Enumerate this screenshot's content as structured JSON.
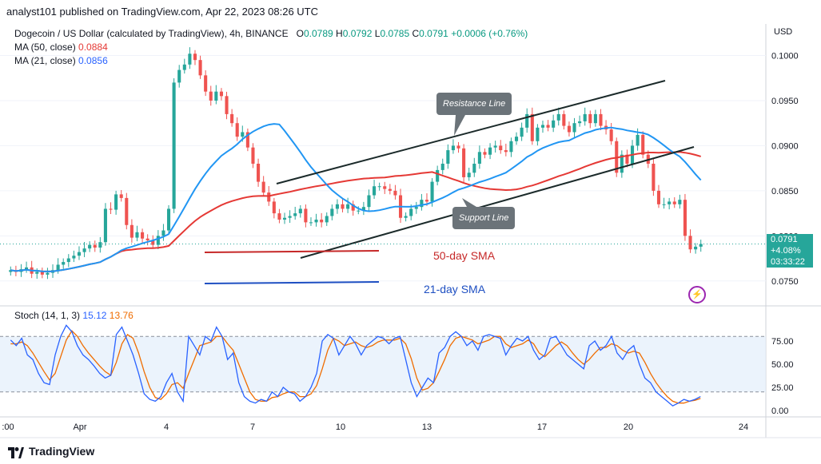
{
  "header": {
    "published": "analyst101 published on TradingView.com, Apr 22, 2023 08:26 UTC"
  },
  "legend": {
    "symbol": "Dogecoin / US Dollar (calculated by TradingView), 4h, BINANCE",
    "open_label": "O",
    "open": "0.0789",
    "high_label": "H",
    "high": "0.0792",
    "low_label": "L",
    "low": "0.0785",
    "close_label": "C",
    "close": "0.0791",
    "change": "+0.0006 (+0.76%)",
    "ma50_label": "MA (50, close)",
    "ma50_value": "0.0884",
    "ma21_label": "MA (21, close)",
    "ma21_value": "0.0856"
  },
  "stoch_legend": {
    "label": "Stoch (14, 1, 3)",
    "k_value": "15.12",
    "d_value": "13.76"
  },
  "price_axis": {
    "currency": "USD",
    "current_price": "0.0791",
    "current_change": "+4.08%",
    "countdown": "03:33:22"
  },
  "annotations": {
    "resistance": "Resistance Line",
    "support": "Support Line",
    "sma50": "50-day SMA",
    "sma21": "21-day SMA"
  },
  "footer": {
    "brand": "TradingView"
  },
  "colors": {
    "up": "#26a69a",
    "down": "#ef5350",
    "ma50": "#e53935",
    "ma21": "#2196f3",
    "stoch_k": "#2962ff",
    "stoch_d": "#ef6c00",
    "channel": "#1b2a2a"
  },
  "chart_data": [
    {
      "type": "candlestick",
      "title": "Dogecoin / US Dollar (calculated by TradingView), 4h, BINANCE",
      "ylim": [
        0.0725,
        0.1035
      ],
      "y_ticks": [
        "0.1000",
        "0.0950",
        "0.0900",
        "0.0850",
        "0.0800",
        "0.0750"
      ],
      "x_ticks": [
        ":00",
        "Apr",
        "4",
        "7",
        "10",
        "13",
        "17",
        "20",
        "24"
      ],
      "series": [
        {
          "name": "MA (50, close)",
          "last": 0.0884
        },
        {
          "name": "MA (21, close)",
          "last": 0.0856
        }
      ],
      "close_series": [
        0.0762,
        0.076,
        0.0763,
        0.0765,
        0.0758,
        0.076,
        0.0757,
        0.0759,
        0.0762,
        0.0768,
        0.0771,
        0.0775,
        0.0778,
        0.0782,
        0.0786,
        0.079,
        0.0787,
        0.0793,
        0.083,
        0.0829,
        0.0846,
        0.0842,
        0.0812,
        0.0798,
        0.0804,
        0.0797,
        0.0795,
        0.079,
        0.08,
        0.0806,
        0.083,
        0.097,
        0.0984,
        0.099,
        0.1002,
        0.0995,
        0.0978,
        0.096,
        0.095,
        0.096,
        0.0955,
        0.0935,
        0.0925,
        0.091,
        0.0915,
        0.0898,
        0.088,
        0.086,
        0.0848,
        0.0838,
        0.0825,
        0.0818,
        0.082,
        0.0822,
        0.0825,
        0.083,
        0.0815,
        0.0815,
        0.0818,
        0.0815,
        0.0822,
        0.083,
        0.0835,
        0.083,
        0.0835,
        0.0828,
        0.0828,
        0.0832,
        0.0845,
        0.0855,
        0.0855,
        0.0852,
        0.085,
        0.0845,
        0.082,
        0.0822,
        0.083,
        0.0832,
        0.084,
        0.0838,
        0.086,
        0.0873,
        0.088,
        0.0895,
        0.09,
        0.0897,
        0.0865,
        0.087,
        0.088,
        0.0893,
        0.089,
        0.0898,
        0.09,
        0.0895,
        0.0893,
        0.0905,
        0.091,
        0.092,
        0.0935,
        0.0905,
        0.092,
        0.0923,
        0.092,
        0.0928,
        0.0935,
        0.0922,
        0.0915,
        0.0925,
        0.0927,
        0.0935,
        0.0925,
        0.0935,
        0.0922,
        0.0918,
        0.0905,
        0.087,
        0.089,
        0.088,
        0.09,
        0.0912,
        0.089,
        0.088,
        0.085,
        0.0835,
        0.0835,
        0.0838,
        0.0835,
        0.084,
        0.08,
        0.0785,
        0.0788,
        0.0791
      ]
    },
    {
      "type": "line",
      "title": "Stoch (14, 1, 3)",
      "ylim": [
        0,
        100
      ],
      "y_ticks": [
        "75.00",
        "50.00",
        "25.00",
        "0.00"
      ],
      "band": [
        20,
        80
      ],
      "series": [
        {
          "name": "%K",
          "last": 15.12,
          "values": [
            76,
            70,
            78,
            60,
            55,
            40,
            30,
            28,
            60,
            80,
            92,
            85,
            70,
            60,
            55,
            48,
            40,
            35,
            38,
            82,
            90,
            75,
            60,
            40,
            18,
            12,
            10,
            15,
            30,
            40,
            20,
            10,
            80,
            70,
            60,
            80,
            75,
            90,
            80,
            55,
            62,
            30,
            15,
            10,
            8,
            12,
            10,
            20,
            15,
            25,
            20,
            18,
            10,
            15,
            25,
            40,
            75,
            82,
            78,
            60,
            70,
            80,
            72,
            60,
            70,
            75,
            80,
            78,
            72,
            78,
            80,
            55,
            30,
            15,
            25,
            35,
            30,
            62,
            68,
            80,
            85,
            80,
            70,
            75,
            65,
            80,
            82,
            80,
            78,
            60,
            70,
            78,
            75,
            80,
            65,
            55,
            60,
            78,
            80,
            70,
            60,
            55,
            50,
            45,
            70,
            75,
            65,
            70,
            80,
            62,
            55,
            65,
            70,
            50,
            35,
            30,
            20,
            15,
            10,
            5,
            8,
            12,
            10,
            12,
            15
          ]
        },
        {
          "name": "%D",
          "last": 13.76,
          "values": [
            72,
            72,
            74,
            70,
            62,
            52,
            42,
            33,
            40,
            58,
            76,
            86,
            80,
            70,
            62,
            55,
            48,
            42,
            38,
            52,
            72,
            82,
            78,
            62,
            42,
            25,
            14,
            12,
            18,
            28,
            30,
            24,
            40,
            55,
            70,
            72,
            74,
            80,
            80,
            72,
            65,
            50,
            35,
            20,
            12,
            10,
            10,
            14,
            15,
            18,
            20,
            20,
            15,
            15,
            18,
            27,
            45,
            65,
            78,
            75,
            70,
            72,
            74,
            70,
            68,
            70,
            74,
            76,
            76,
            76,
            78,
            72,
            56,
            35,
            22,
            24,
            30,
            42,
            55,
            70,
            78,
            80,
            78,
            76,
            72,
            74,
            76,
            80,
            80,
            72,
            68,
            70,
            72,
            76,
            72,
            62,
            58,
            64,
            70,
            74,
            70,
            62,
            55,
            50,
            55,
            62,
            68,
            68,
            72,
            70,
            65,
            62,
            64,
            62,
            52,
            40,
            30,
            22,
            15,
            10,
            8,
            8,
            10,
            11,
            13
          ]
        }
      ]
    }
  ]
}
